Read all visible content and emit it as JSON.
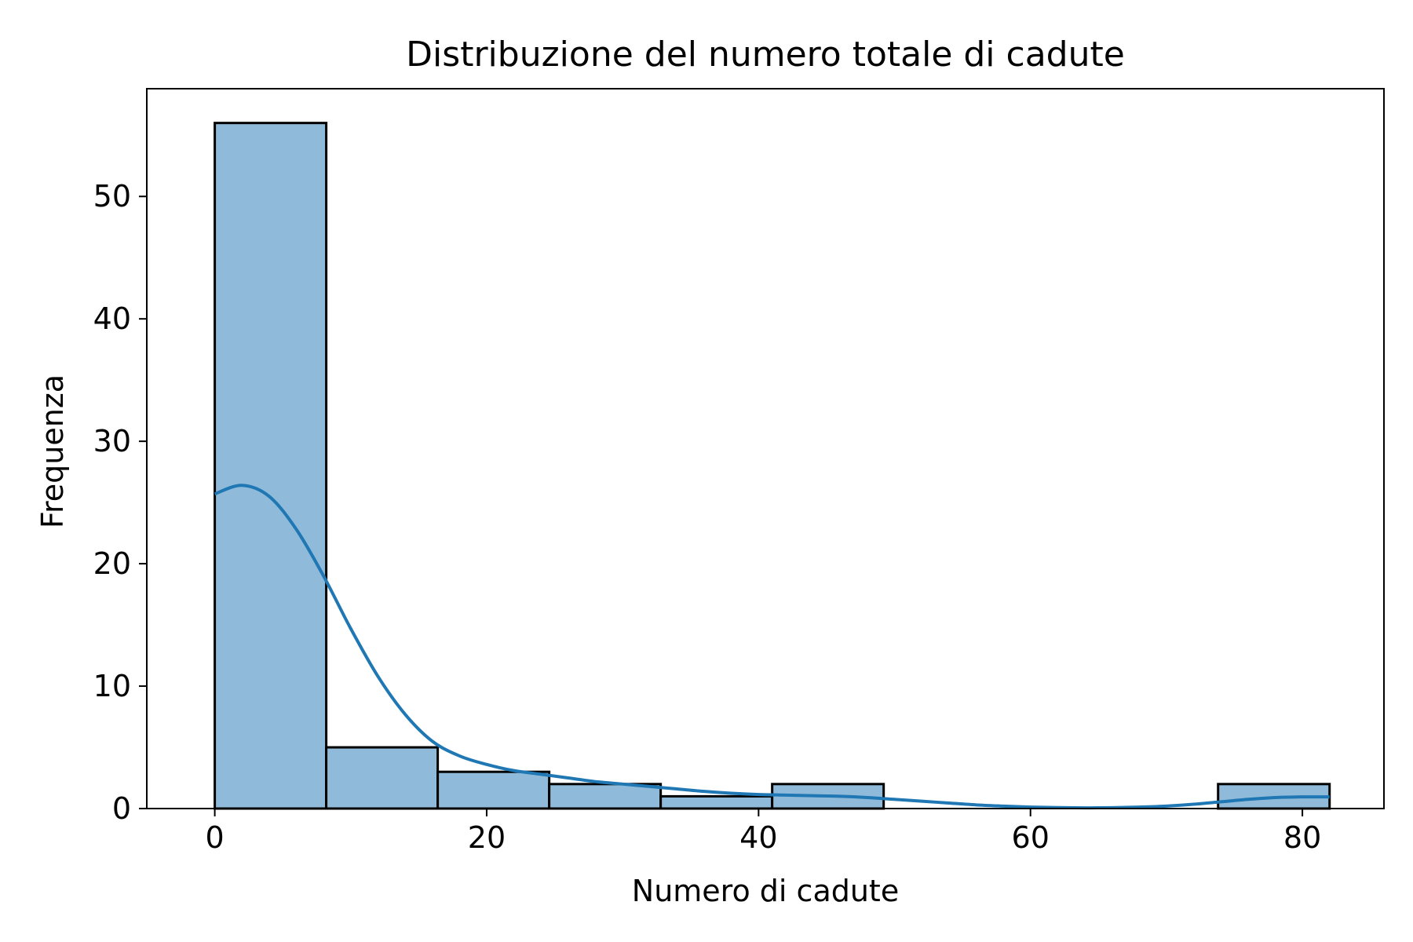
{
  "chart_data": {
    "type": "histogram",
    "title": "Distribuzione del numero totale di cadute",
    "xlabel": "Numero di cadute",
    "ylabel": "Frequenza",
    "xlim": [
      -5,
      86
    ],
    "ylim": [
      0,
      58.8
    ],
    "x_ticks": [
      0,
      20,
      40,
      60,
      80
    ],
    "y_ticks": [
      0,
      10,
      20,
      30,
      40,
      50
    ],
    "grid": false,
    "bins": [
      {
        "start": 0,
        "end": 8.2,
        "count": 56
      },
      {
        "start": 8.2,
        "end": 16.4,
        "count": 5
      },
      {
        "start": 16.4,
        "end": 24.6,
        "count": 3
      },
      {
        "start": 24.6,
        "end": 32.8,
        "count": 2
      },
      {
        "start": 32.8,
        "end": 41.0,
        "count": 1
      },
      {
        "start": 41.0,
        "end": 49.2,
        "count": 2
      },
      {
        "start": 49.2,
        "end": 57.4,
        "count": 0
      },
      {
        "start": 57.4,
        "end": 65.6,
        "count": 0
      },
      {
        "start": 65.6,
        "end": 73.8,
        "count": 0
      },
      {
        "start": 73.8,
        "end": 82.0,
        "count": 2
      }
    ],
    "kde": {
      "x": [
        0,
        2,
        4,
        6,
        8,
        10,
        12,
        14,
        16,
        18,
        20,
        22,
        24,
        26,
        28,
        30,
        32,
        34,
        36,
        38,
        40,
        42,
        44,
        46,
        48,
        50,
        52,
        54,
        56,
        58,
        60,
        62,
        64,
        66,
        68,
        70,
        72,
        74,
        76,
        78,
        80,
        82
      ],
      "y": [
        25.7,
        26.4,
        25.5,
        22.8,
        19.0,
        14.7,
        10.8,
        7.7,
        5.5,
        4.3,
        3.6,
        3.1,
        2.8,
        2.5,
        2.2,
        2.0,
        1.8,
        1.6,
        1.4,
        1.25,
        1.15,
        1.1,
        1.05,
        1.0,
        0.9,
        0.75,
        0.6,
        0.45,
        0.3,
        0.2,
        0.12,
        0.08,
        0.06,
        0.07,
        0.12,
        0.2,
        0.35,
        0.55,
        0.75,
        0.9,
        0.95,
        0.95
      ]
    },
    "colors": {
      "bar_fill": "#8fbad9",
      "bar_edge": "#000000",
      "kde_line": "#1f77b4"
    }
  }
}
